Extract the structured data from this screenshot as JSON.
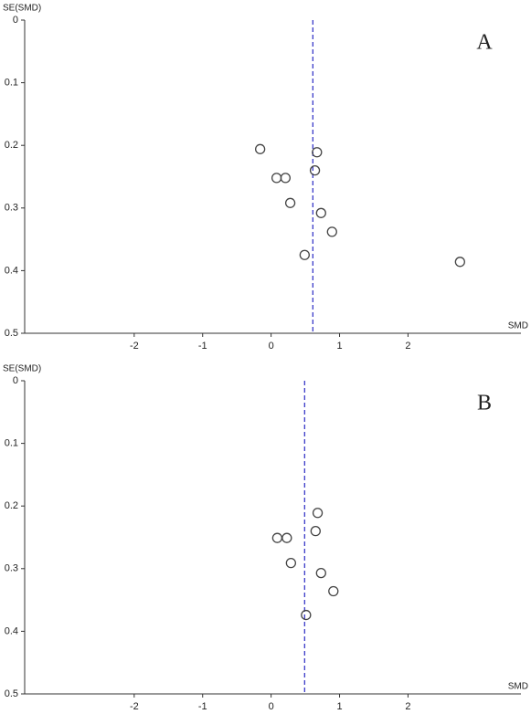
{
  "chart_data": [
    {
      "type": "scatter",
      "panel_label": "A",
      "x_label": "SMD",
      "y_label": "SE(SMD)",
      "x": [
        -0.16,
        0.67,
        0.08,
        0.21,
        0.64,
        0.28,
        0.73,
        0.89,
        0.49,
        2.76
      ],
      "y": [
        0.206,
        0.211,
        0.252,
        0.252,
        0.24,
        0.292,
        0.308,
        0.338,
        0.375,
        0.386
      ],
      "color": "#444444",
      "reference_x": 0.61,
      "reference_color": "#3a3ac8",
      "xlim": [
        -3.6,
        3.65
      ],
      "xticks": [
        -2,
        -1,
        0,
        1,
        2
      ],
      "ylim": [
        0,
        0.5
      ],
      "yticks": [
        0,
        0.1,
        0.2,
        0.3,
        0.4,
        0.5
      ],
      "y_inverted": true
    },
    {
      "type": "scatter",
      "panel_label": "B",
      "x_label": "SMD",
      "y_label": "SE(SMD)",
      "x": [
        0.68,
        0.09,
        0.23,
        0.65,
        0.29,
        0.73,
        0.91,
        0.51
      ],
      "y": [
        0.211,
        0.251,
        0.251,
        0.24,
        0.291,
        0.307,
        0.336,
        0.374
      ],
      "color": "#444444",
      "reference_x": 0.49,
      "reference_color": "#3a3ac8",
      "xlim": [
        -3.6,
        3.65
      ],
      "xticks": [
        -2,
        -1,
        0,
        1,
        2
      ],
      "ylim": [
        0,
        0.5
      ],
      "yticks": [
        0,
        0.1,
        0.2,
        0.3,
        0.4,
        0.5
      ],
      "y_inverted": true
    }
  ]
}
